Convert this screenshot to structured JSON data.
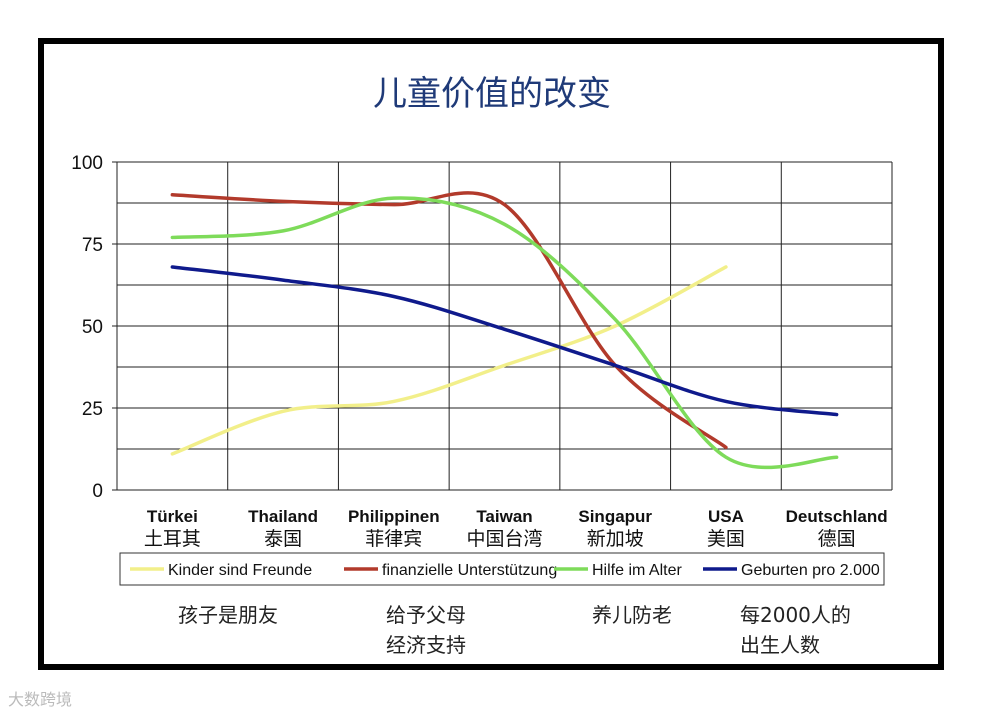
{
  "chart_data": {
    "type": "line",
    "title": "儿童价值的改变",
    "categories": [
      {
        "de": "Türkei",
        "cn": "土耳其"
      },
      {
        "de": "Thailand",
        "cn": "泰国"
      },
      {
        "de": "Philippinen",
        "cn": "菲律宾"
      },
      {
        "de": "Taiwan",
        "cn": "中国台湾"
      },
      {
        "de": "Singapur",
        "cn": "新加坡"
      },
      {
        "de": "USA",
        "cn": "美国"
      },
      {
        "de": "Deutschland",
        "cn": "德国"
      }
    ],
    "ylim": [
      0,
      100
    ],
    "yticks": [
      0,
      25,
      50,
      75,
      100
    ],
    "grid": true,
    "legend_position": "bottom",
    "series": [
      {
        "name": "Kinder sind Freunde",
        "color": "#f2ef8a",
        "values": [
          11,
          24,
          27,
          38,
          50,
          68,
          null
        ]
      },
      {
        "name": "finanzielle Unterstützung",
        "color": "#b23a2b",
        "values": [
          90,
          88,
          87,
          87,
          38,
          13,
          null
        ]
      },
      {
        "name": "Hilfe im Alter",
        "color": "#7edb5a",
        "values": [
          77,
          79,
          89,
          81,
          52,
          10,
          10
        ]
      },
      {
        "name": "Geburten pro 2.000",
        "color": "#0f1a8c",
        "values": [
          68,
          64,
          59,
          49,
          38,
          27,
          23
        ]
      }
    ]
  },
  "notes": [
    {
      "line1": "孩子是朋友",
      "line2": ""
    },
    {
      "line1": "给予父母",
      "line2": "经济支持"
    },
    {
      "line1": "养儿防老",
      "line2": ""
    },
    {
      "line1": "每2000人的",
      "line2": "出生人数"
    }
  ],
  "watermark": "大数跨境"
}
